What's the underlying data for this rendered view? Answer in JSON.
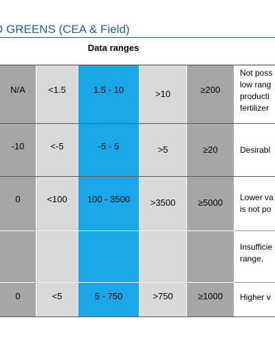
{
  "title": "D GREENS (CEA & Field)",
  "table": {
    "header": "Data ranges",
    "rows": [
      {
        "c0": "N/A",
        "c1": "<1.5",
        "c2": "1.5 - 10",
        "c3": ">10",
        "c4": "≥200",
        "notes": [
          "Not poss",
          "low rang",
          "producti",
          "fertilizer"
        ]
      },
      {
        "c0": "-10",
        "c1": "<-5",
        "c2": "-5 - 5",
        "c3": ">5",
        "c4": "≥20",
        "notes": [
          "Desirabl"
        ]
      },
      {
        "c0": "0",
        "c1": "<100",
        "c2": "100 - 3500",
        "c3": ">3500",
        "c4": "≥5000",
        "notes": [
          "Lower va",
          "is not po"
        ]
      },
      {
        "c0": "",
        "c1": "",
        "c2": "",
        "c3": "",
        "c4": "",
        "notes": [
          "Insufficie",
          "range."
        ]
      },
      {
        "c0": "0",
        "c1": "<5",
        "c2": "5 - 750",
        "c3": ">750",
        "c4": "≥1000",
        "notes": [
          "Higher v"
        ]
      }
    ]
  }
}
